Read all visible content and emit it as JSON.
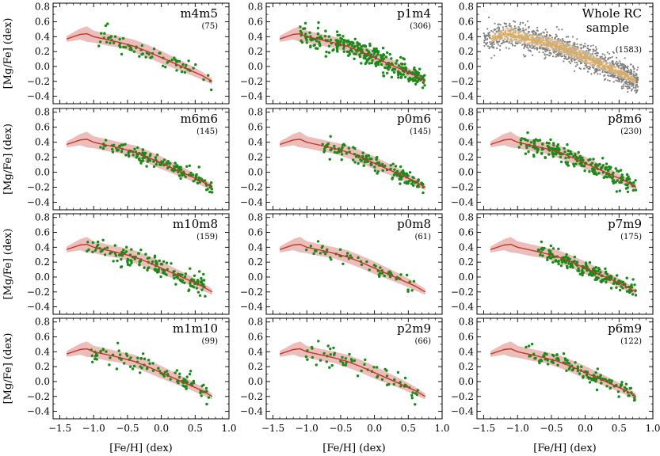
{
  "chart_data": {
    "type": "scatter",
    "layout": {
      "rows": 4,
      "cols": 3
    },
    "xlabel": "[Fe/H] (dex)",
    "ylabel": "[Mg/Fe] (dex)",
    "xlim": [
      -1.6,
      1.0
    ],
    "ylim": [
      -0.5,
      0.85
    ],
    "xticks": [
      "−1.5",
      "−1.0",
      "−0.5",
      "0.0",
      "0.5",
      "1.0"
    ],
    "xtick_values": [
      -1.5,
      -1.0,
      -0.5,
      0.0,
      0.5,
      1.0
    ],
    "yticks": [
      "−0.4",
      "−0.2",
      "0.0",
      "0.2",
      "0.4",
      "0.6",
      "0.8"
    ],
    "ytick_values": [
      -0.4,
      -0.2,
      0.0,
      0.2,
      0.4,
      0.6,
      0.8
    ],
    "grid": false,
    "colors": {
      "points": "#1a8a1a",
      "whole_points": "#808080",
      "trend": "#c0392b",
      "band": "#e6a8a4",
      "whole_trend": "#f5a623",
      "whole_band": "#fbd79a"
    },
    "trend": {
      "x": [
        -1.4,
        -1.2,
        -1.1,
        -1.0,
        -0.8,
        -0.6,
        -0.4,
        -0.2,
        0.0,
        0.2,
        0.4,
        0.6,
        0.75
      ],
      "y": [
        0.37,
        0.43,
        0.44,
        0.4,
        0.36,
        0.32,
        0.27,
        0.2,
        0.12,
        0.04,
        -0.04,
        -0.12,
        -0.2
      ],
      "y_low": [
        0.33,
        0.36,
        0.33,
        0.32,
        0.28,
        0.25,
        0.19,
        0.12,
        0.04,
        -0.03,
        -0.1,
        -0.18,
        -0.24
      ],
      "y_high": [
        0.41,
        0.51,
        0.54,
        0.48,
        0.44,
        0.4,
        0.36,
        0.29,
        0.21,
        0.12,
        0.03,
        -0.07,
        -0.16
      ]
    },
    "panels": [
      {
        "name": "m4m5",
        "count": "(75)",
        "n": 75,
        "xmin": -1.0,
        "xmax": 0.75,
        "scatter": 0.06,
        "seed": 11
      },
      {
        "name": "p1m4",
        "count": "(306)",
        "n": 306,
        "xmin": -1.1,
        "xmax": 0.75,
        "scatter": 0.07,
        "seed": 22
      },
      {
        "name": "Whole RC",
        "name2": "sample",
        "count": "(1583)",
        "n": 1583,
        "xmin": -1.5,
        "xmax": 0.78,
        "scatter": 0.08,
        "seed": 33,
        "whole": true
      },
      {
        "name": "m6m6",
        "count": "(145)",
        "n": 145,
        "xmin": -0.9,
        "xmax": 0.75,
        "scatter": 0.05,
        "seed": 44
      },
      {
        "name": "p0m6",
        "count": "(145)",
        "n": 145,
        "xmin": -0.8,
        "xmax": 0.72,
        "scatter": 0.06,
        "seed": 55
      },
      {
        "name": "p8m6",
        "count": "(230)",
        "n": 230,
        "xmin": -1.0,
        "xmax": 0.75,
        "scatter": 0.06,
        "seed": 66
      },
      {
        "name": "m10m8",
        "count": "(159)",
        "n": 159,
        "xmin": -1.1,
        "xmax": 0.65,
        "scatter": 0.08,
        "seed": 77
      },
      {
        "name": "p0m8",
        "count": "(61)",
        "n": 61,
        "xmin": -1.1,
        "xmax": 0.6,
        "scatter": 0.05,
        "seed": 88
      },
      {
        "name": "p7m9",
        "count": "(175)",
        "n": 175,
        "xmin": -0.7,
        "xmax": 0.75,
        "scatter": 0.05,
        "seed": 99
      },
      {
        "name": "m1m10",
        "count": "(99)",
        "n": 99,
        "xmin": -1.1,
        "xmax": 0.7,
        "scatter": 0.06,
        "seed": 111
      },
      {
        "name": "p2m9",
        "count": "(66)",
        "n": 66,
        "xmin": -1.1,
        "xmax": 0.65,
        "scatter": 0.07,
        "seed": 122
      },
      {
        "name": "p6m9",
        "count": "(122)",
        "n": 122,
        "xmin": -0.9,
        "xmax": 0.75,
        "scatter": 0.05,
        "seed": 133
      }
    ]
  }
}
